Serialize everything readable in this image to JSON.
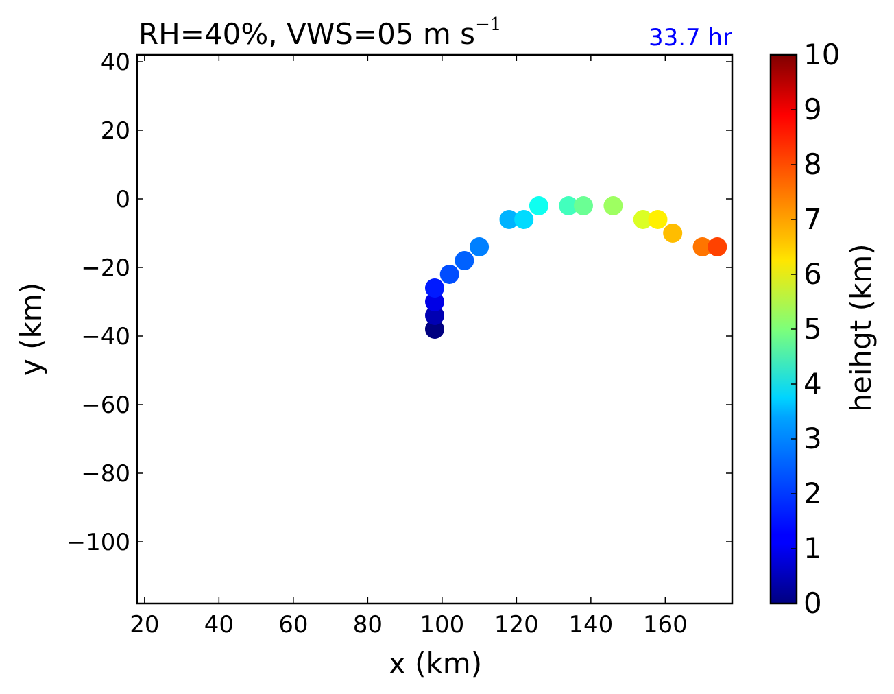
{
  "chart_data": {
    "type": "scatter",
    "title": {
      "main": "RH=40%, VWS=05 m s",
      "superscript": "−1"
    },
    "time_label": "33.7 hr",
    "time_color": "#0000ff",
    "xlabel": "x (km)",
    "ylabel": "y (km)",
    "xlim": [
      18,
      178
    ],
    "ylim": [
      -118,
      42
    ],
    "xticks": [
      20,
      40,
      60,
      80,
      100,
      120,
      140,
      160
    ],
    "yticks": [
      40,
      20,
      0,
      -20,
      -40,
      -60,
      -80,
      -100
    ],
    "colormap": "jet",
    "colorbar": {
      "label": "heihgt (km)",
      "range": [
        0,
        10
      ],
      "ticks": [
        0,
        1,
        2,
        3,
        4,
        5,
        6,
        7,
        8,
        9,
        10
      ]
    },
    "points": [
      {
        "x": 98,
        "y": -38,
        "height": 0.0
      },
      {
        "x": 98,
        "y": -34,
        "height": 0.5
      },
      {
        "x": 98,
        "y": -30,
        "height": 1.0
      },
      {
        "x": 98,
        "y": -26,
        "height": 1.5
      },
      {
        "x": 102,
        "y": -22,
        "height": 2.0
      },
      {
        "x": 106,
        "y": -18,
        "height": 2.2
      },
      {
        "x": 110,
        "y": -14,
        "height": 2.5
      },
      {
        "x": 118,
        "y": -6,
        "height": 3.0
      },
      {
        "x": 122,
        "y": -6,
        "height": 3.4
      },
      {
        "x": 126,
        "y": -2,
        "height": 3.9
      },
      {
        "x": 134,
        "y": -2,
        "height": 4.4
      },
      {
        "x": 138,
        "y": -2,
        "height": 4.8
      },
      {
        "x": 146,
        "y": -2,
        "height": 5.3
      },
      {
        "x": 154,
        "y": -6,
        "height": 5.9
      },
      {
        "x": 158,
        "y": -6,
        "height": 6.4
      },
      {
        "x": 162,
        "y": -10,
        "height": 6.9
      },
      {
        "x": 170,
        "y": -14,
        "height": 7.6
      },
      {
        "x": 174,
        "y": -14,
        "height": 8.1
      }
    ]
  }
}
